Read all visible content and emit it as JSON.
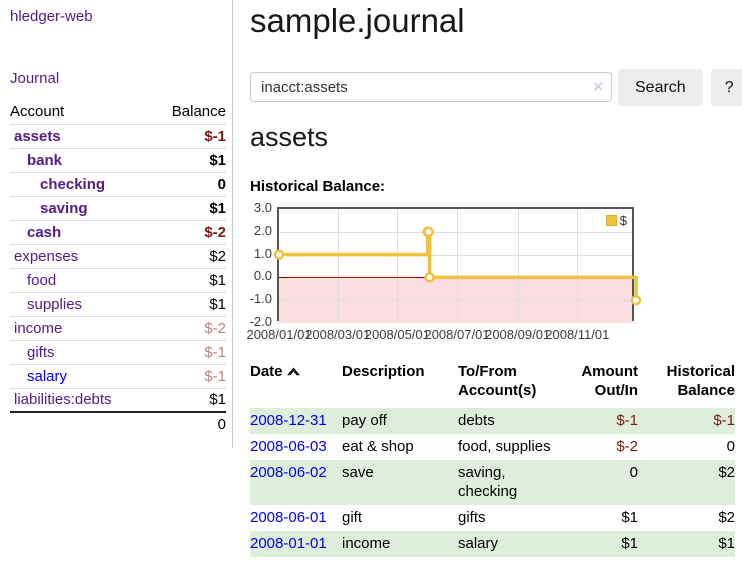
{
  "sidebar": {
    "brand": "hledger-web",
    "nav_journal": "Journal",
    "columns": {
      "account": "Account",
      "balance": "Balance"
    },
    "accounts": [
      {
        "name": "assets",
        "balance": "$-1",
        "level": 1,
        "bold": true,
        "name_color": "purple",
        "balance_color": "negative-strong"
      },
      {
        "name": "bank",
        "balance": "$1",
        "level": 2,
        "bold": true,
        "name_color": "purple",
        "balance_color": "default"
      },
      {
        "name": "checking",
        "balance": "0",
        "level": 3,
        "bold": true,
        "name_color": "purple",
        "balance_color": "default"
      },
      {
        "name": "saving",
        "balance": "$1",
        "level": 3,
        "bold": true,
        "name_color": "purple",
        "balance_color": "default"
      },
      {
        "name": "cash",
        "balance": "$-2",
        "level": 2,
        "bold": true,
        "name_color": "purple",
        "balance_color": "negative-strong"
      },
      {
        "name": "expenses",
        "balance": "$2",
        "level": 1,
        "bold": false,
        "name_color": "purple",
        "balance_color": "default"
      },
      {
        "name": "food",
        "balance": "$1",
        "level": 2,
        "bold": false,
        "name_color": "purple",
        "balance_color": "default"
      },
      {
        "name": "supplies",
        "balance": "$1",
        "level": 2,
        "bold": false,
        "name_color": "purple",
        "balance_color": "default"
      },
      {
        "name": "income",
        "balance": "$-2",
        "level": 1,
        "bold": false,
        "name_color": "purple",
        "balance_color": "negative-soft"
      },
      {
        "name": "gifts",
        "balance": "$-1",
        "level": 2,
        "bold": false,
        "name_color": "purple",
        "balance_color": "negative-soft"
      },
      {
        "name": "salary",
        "balance": "$-1",
        "level": 2,
        "bold": false,
        "name_color": "blue",
        "balance_color": "negative-soft"
      },
      {
        "name": "liabilities:debts",
        "balance": "$1",
        "level": 1,
        "bold": false,
        "name_color": "purple",
        "balance_color": "default"
      }
    ],
    "total": "0"
  },
  "header": {
    "title": "sample.journal"
  },
  "search": {
    "value": "inacct:assets",
    "clear_icon": "×",
    "search_button": "Search",
    "help_button": "?"
  },
  "account_page": {
    "heading": "assets",
    "chart_label": "Historical Balance:"
  },
  "chart_data": {
    "type": "line",
    "title": "Historical Balance:",
    "step": true,
    "x_range_days": [
      0,
      365
    ],
    "ylim": [
      -2,
      3
    ],
    "y_ticks": [
      "3.0",
      "2.0",
      "1.0",
      "0.0",
      "-1.0",
      "-2.0"
    ],
    "x_ticks": [
      {
        "label": "2008/01/01",
        "day": 0
      },
      {
        "label": "2008/03/01",
        "day": 60
      },
      {
        "label": "2008/05/01",
        "day": 121
      },
      {
        "label": "2008/07/01",
        "day": 182
      },
      {
        "label": "2008/09/01",
        "day": 244
      },
      {
        "label": "2008/11/01",
        "day": 305
      }
    ],
    "series": [
      {
        "name": "$",
        "color": "#edc240",
        "points": [
          {
            "date": "2008-01-01",
            "day": 0,
            "value": 1
          },
          {
            "date": "2008-06-01",
            "day": 152,
            "value": 2
          },
          {
            "date": "2008-06-02",
            "day": 153,
            "value": 2
          },
          {
            "date": "2008-06-03",
            "day": 154,
            "value": 0
          },
          {
            "date": "2008-12-31",
            "day": 365,
            "value": -1
          }
        ]
      }
    ],
    "legend": {
      "label": "$",
      "position": "top-right"
    },
    "negative_region_fill": "#fbdee0",
    "zero_line_color": "#a00000",
    "grid": true
  },
  "register": {
    "columns": {
      "date": "Date",
      "description": "Description",
      "accounts": "To/From Account(s)",
      "amount": "Amount Out/In",
      "balance": "Historical Balance"
    },
    "sort": {
      "column": "date",
      "direction": "ascending"
    },
    "rows": [
      {
        "date": "2008-12-31",
        "description": "pay off",
        "accounts": [
          "debts"
        ],
        "amount": "$-1",
        "amount_negative": true,
        "balance": "$-1",
        "balance_negative": true,
        "shaded": true
      },
      {
        "date": "2008-06-03",
        "description": "eat & shop",
        "accounts": [
          "food",
          "supplies"
        ],
        "amount": "$-2",
        "amount_negative": true,
        "balance": "0",
        "balance_negative": false,
        "shaded": false
      },
      {
        "date": "2008-06-02",
        "description": "save",
        "accounts": [
          "saving",
          "checking"
        ],
        "amount": "0",
        "amount_negative": false,
        "balance": "$2",
        "balance_negative": false,
        "shaded": true
      },
      {
        "date": "2008-06-01",
        "description": "gift",
        "accounts": [
          "gifts"
        ],
        "amount": "$1",
        "amount_negative": false,
        "balance": "$2",
        "balance_negative": false,
        "shaded": false
      },
      {
        "date": "2008-01-01",
        "description": "income",
        "accounts": [
          "salary"
        ],
        "amount": "$1",
        "amount_negative": false,
        "balance": "$1",
        "balance_negative": false,
        "shaded": true
      }
    ]
  },
  "colors": {
    "link_visited": "#551a8b",
    "link_unvisited": "#0000ee",
    "negative_strong": "#7c1a12",
    "negative_soft": "#b98484",
    "row_shaded": "#ddeeda",
    "chart_line": "#edc240",
    "chart_border": "#545454",
    "chart_grid": "#dcdcdc",
    "chart_negative_fill": "#fbdee0",
    "chart_zero_line": "#a00000",
    "button_bg": "#ededed"
  }
}
